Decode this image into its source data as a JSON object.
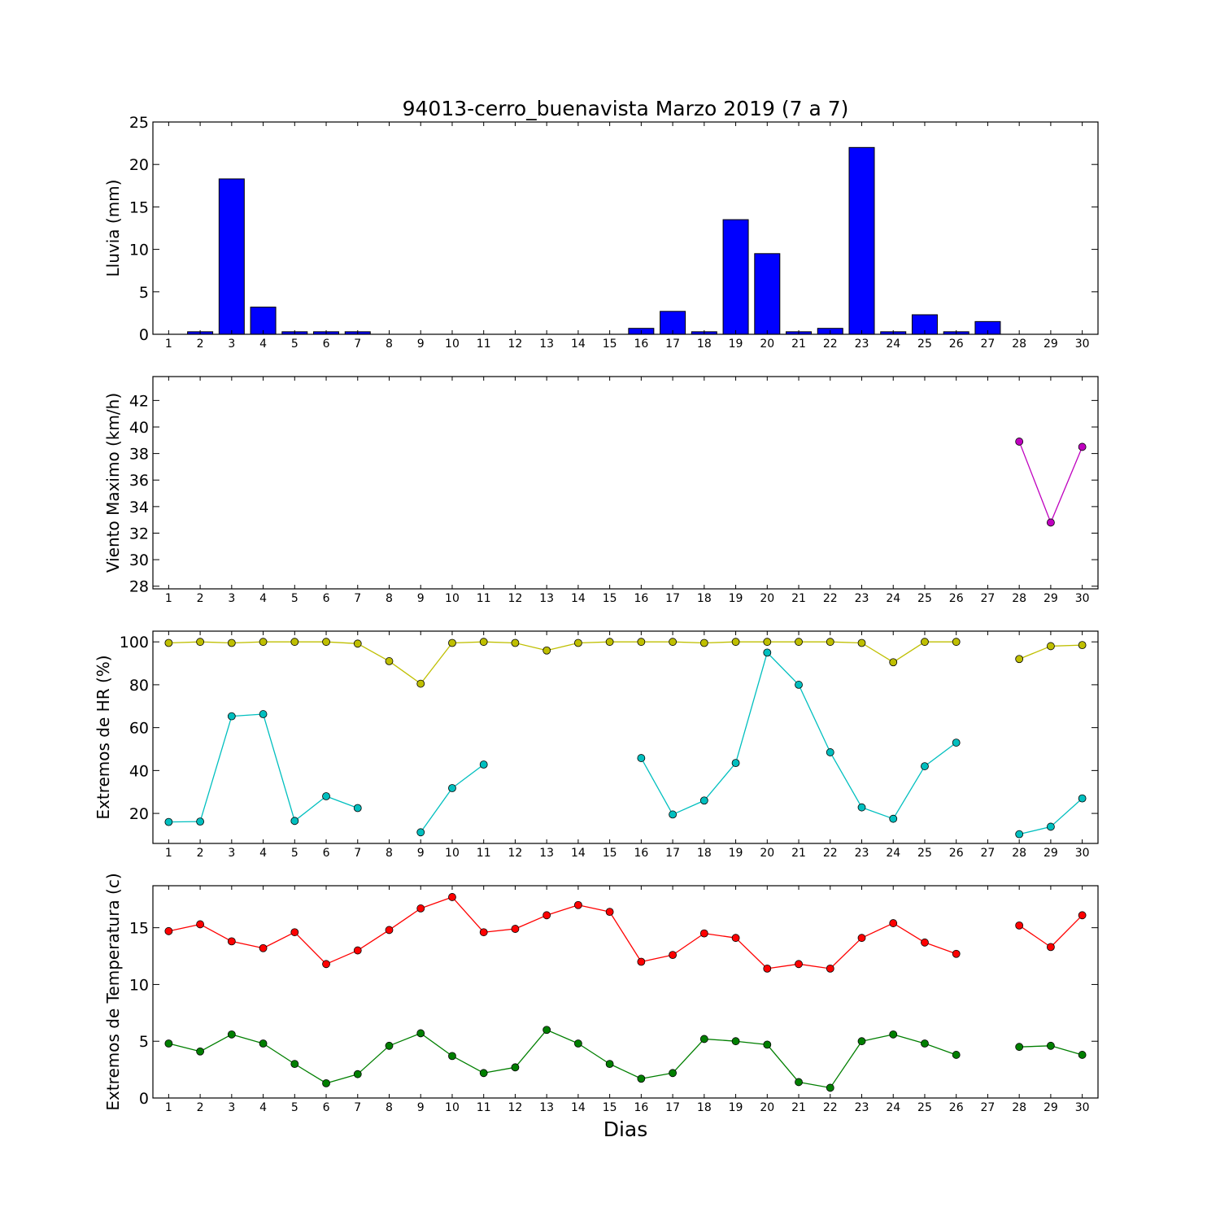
{
  "chart_data": [
    {
      "type": "bar",
      "title": "94013-cerro_buenavista Marzo 2019  (7 a 7)",
      "ylabel": "Lluvia (mm)",
      "xlabel": "",
      "ylim": [
        0,
        25
      ],
      "yticks": [
        0,
        5,
        10,
        15,
        20,
        25
      ],
      "categories": [
        "1",
        "2",
        "3",
        "4",
        "5",
        "6",
        "7",
        "8",
        "9",
        "10",
        "11",
        "12",
        "13",
        "14",
        "15",
        "16",
        "17",
        "18",
        "19",
        "20",
        "21",
        "22",
        "23",
        "24",
        "25",
        "26",
        "27",
        "28",
        "29",
        "30"
      ],
      "values": [
        0,
        0.3,
        18.3,
        3.2,
        0.3,
        0.3,
        0.3,
        0,
        0,
        0,
        0,
        0,
        0,
        0,
        0,
        0.7,
        2.7,
        0.3,
        13.5,
        9.5,
        0.3,
        0.7,
        22,
        0.3,
        2.3,
        0.3,
        1.5,
        0,
        0,
        0
      ],
      "bar_color": "#0000ff"
    },
    {
      "type": "line",
      "ylabel": "Viento Maximo (km/h)",
      "ylim": [
        27.8,
        43.8
      ],
      "yticks": [
        28,
        30,
        32,
        34,
        36,
        38,
        40,
        42
      ],
      "categories": [
        "1",
        "2",
        "3",
        "4",
        "5",
        "6",
        "7",
        "8",
        "9",
        "10",
        "11",
        "12",
        "13",
        "14",
        "15",
        "16",
        "17",
        "18",
        "19",
        "20",
        "21",
        "22",
        "23",
        "24",
        "25",
        "26",
        "27",
        "28",
        "29",
        "30"
      ],
      "series": [
        {
          "color": "#bf00bf",
          "values": [
            null,
            null,
            null,
            null,
            null,
            null,
            null,
            null,
            null,
            null,
            null,
            null,
            null,
            null,
            null,
            null,
            null,
            null,
            null,
            null,
            null,
            null,
            null,
            null,
            null,
            null,
            null,
            38.9,
            32.8,
            38.5
          ]
        }
      ]
    },
    {
      "type": "line",
      "ylabel": "Extremos de HR (%)",
      "ylim": [
        6,
        105
      ],
      "yticks": [
        20,
        40,
        60,
        80,
        100
      ],
      "categories": [
        "1",
        "2",
        "3",
        "4",
        "5",
        "6",
        "7",
        "8",
        "9",
        "10",
        "11",
        "12",
        "13",
        "14",
        "15",
        "16",
        "17",
        "18",
        "19",
        "20",
        "21",
        "22",
        "23",
        "24",
        "25",
        "26",
        "27",
        "28",
        "29",
        "30"
      ],
      "series": [
        {
          "color": "#bfbf00",
          "values": [
            99.5,
            100,
            99.5,
            100,
            100,
            100,
            99.2,
            91,
            80.5,
            99.5,
            100,
            99.5,
            96,
            99.5,
            100,
            100,
            100,
            99.5,
            100,
            100,
            100,
            100,
            99.5,
            90.5,
            100,
            100,
            null,
            92,
            98,
            98.5
          ]
        },
        {
          "color": "#00bfbf",
          "values": [
            16,
            16.2,
            65.3,
            66.3,
            16.5,
            28,
            22.5,
            null,
            11.2,
            31.8,
            42.8,
            null,
            null,
            null,
            null,
            45.8,
            19.5,
            26,
            43.5,
            95,
            80,
            48.5,
            22.8,
            17.5,
            42,
            53,
            null,
            10.3,
            13.8,
            27
          ]
        }
      ]
    },
    {
      "type": "line",
      "ylabel": "Extremos de Temperatura (c)",
      "xlabel": "Dias",
      "ylim": [
        0,
        18.7
      ],
      "yticks": [
        0,
        5,
        10,
        15
      ],
      "categories": [
        "1",
        "2",
        "3",
        "4",
        "5",
        "6",
        "7",
        "8",
        "9",
        "10",
        "11",
        "12",
        "13",
        "14",
        "15",
        "16",
        "17",
        "18",
        "19",
        "20",
        "21",
        "22",
        "23",
        "24",
        "25",
        "26",
        "27",
        "28",
        "29",
        "30"
      ],
      "series": [
        {
          "color": "#ff0000",
          "values": [
            14.7,
            15.3,
            13.8,
            13.2,
            14.6,
            11.8,
            13,
            14.8,
            16.7,
            17.7,
            14.6,
            14.9,
            16.1,
            17,
            16.4,
            12,
            12.6,
            14.5,
            14.1,
            11.4,
            11.8,
            11.4,
            14.1,
            15.4,
            13.7,
            12.7,
            null,
            15.2,
            13.3,
            16.1
          ]
        },
        {
          "color": "#007f00",
          "values": [
            4.8,
            4.1,
            5.6,
            4.8,
            3,
            1.3,
            2.1,
            4.6,
            5.7,
            3.7,
            2.2,
            2.7,
            6,
            4.8,
            3,
            1.7,
            2.2,
            5.2,
            5,
            4.7,
            1.4,
            0.9,
            5,
            5.6,
            4.8,
            3.8,
            null,
            4.5,
            4.6,
            3.8
          ]
        }
      ]
    }
  ]
}
